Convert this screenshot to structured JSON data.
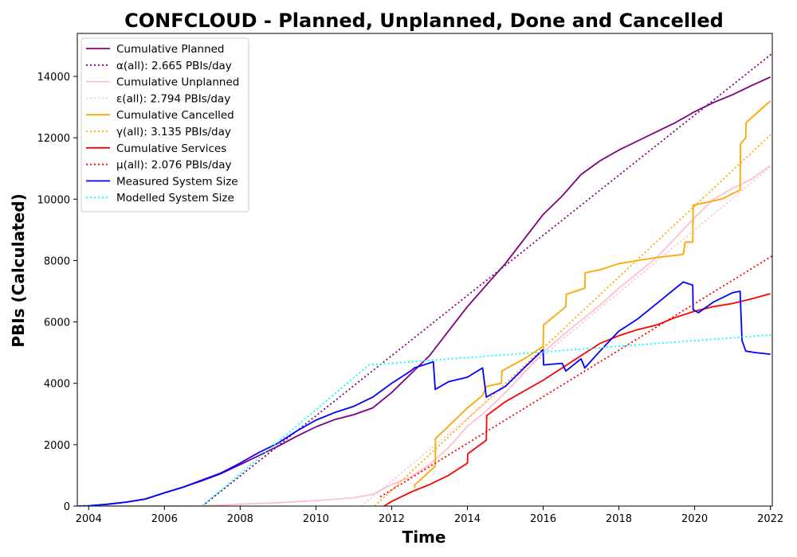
{
  "chart_data": {
    "type": "line",
    "title": "CONFCLOUD - Planned, Unplanned, Done  and Cancelled",
    "xlabel": "Time",
    "ylabel": "PBIs (Calculated)",
    "xlim": [
      2003.7,
      2022.05
    ],
    "ylim": [
      0,
      15400
    ],
    "x_ticks": [
      2004,
      2006,
      2008,
      2010,
      2012,
      2014,
      2016,
      2018,
      2020,
      2022
    ],
    "y_ticks": [
      0,
      2000,
      4000,
      6000,
      8000,
      10000,
      12000,
      14000
    ],
    "grid": false,
    "legend_position": "top-left",
    "series": [
      {
        "name": "Cumulative Planned",
        "color": "#800080",
        "style": "solid",
        "x": [
          2003.7,
          2004,
          2004.5,
          2005,
          2005.5,
          2006,
          2006.5,
          2007,
          2007.5,
          2008,
          2008.5,
          2009,
          2009.5,
          2010,
          2010.5,
          2011,
          2011.5,
          2012,
          2012.5,
          2013,
          2013.5,
          2014,
          2014.5,
          2015,
          2015.5,
          2016,
          2016.5,
          2017,
          2017.5,
          2018,
          2018.5,
          2019,
          2019.5,
          2020,
          2020.5,
          2021,
          2021.5,
          2022
        ],
        "y": [
          0,
          10,
          60,
          130,
          230,
          430,
          620,
          830,
          1060,
          1350,
          1650,
          1950,
          2280,
          2580,
          2820,
          2980,
          3200,
          3700,
          4300,
          4900,
          5700,
          6500,
          7200,
          7900,
          8700,
          9500,
          10100,
          10800,
          11250,
          11600,
          11900,
          12200,
          12500,
          12850,
          13150,
          13400,
          13700,
          13980
        ]
      },
      {
        "name": "α(all): 2.665 PBIs/day",
        "color": "#800080",
        "style": "dotted",
        "x": [
          2007.0,
          2022.05
        ],
        "y": [
          0,
          14750
        ]
      },
      {
        "name": "Cumulative Unplanned",
        "color": "#ffc0cb",
        "style": "solid",
        "x": [
          2003.7,
          2007,
          2008,
          2009,
          2010,
          2011,
          2011.5,
          2012,
          2012.5,
          2013,
          2013.5,
          2014,
          2014.5,
          2015,
          2015.5,
          2016,
          2016.5,
          2017,
          2017.5,
          2018,
          2018.5,
          2019,
          2019.5,
          2020,
          2020.5,
          2021,
          2021.5,
          2022
        ],
        "y": [
          0,
          10,
          60,
          110,
          180,
          270,
          380,
          700,
          950,
          1350,
          1900,
          2600,
          3100,
          3700,
          4350,
          5000,
          5550,
          6050,
          6550,
          7100,
          7600,
          8100,
          8750,
          9400,
          10000,
          10350,
          10650,
          11100
        ]
      },
      {
        "name": "ε(all): 2.794 PBIs/day",
        "color": "#ffc0cb",
        "style": "dotted",
        "x": [
          2011.2,
          2022.05
        ],
        "y": [
          0,
          11100
        ]
      },
      {
        "name": "Cumulative Cancelled",
        "color": "#ffa500",
        "style": "solid",
        "x": [
          2012.6,
          2012.62,
          2013.15,
          2013.16,
          2013.5,
          2014,
          2014.4,
          2014.5,
          2014.9,
          2014.91,
          2015.5,
          2016,
          2016.01,
          2016.6,
          2016.61,
          2017.1,
          2017.11,
          2017.5,
          2018,
          2018.5,
          2019,
          2019.7,
          2019.75,
          2019.95,
          2019.96,
          2020.7,
          2020.71,
          2021.2,
          2021.21,
          2021.35,
          2021.36,
          2022
        ],
        "y": [
          600,
          700,
          1300,
          2200,
          2600,
          3200,
          3600,
          3900,
          4000,
          4400,
          4800,
          5200,
          5900,
          6500,
          6900,
          7100,
          7600,
          7700,
          7900,
          8000,
          8100,
          8200,
          8600,
          8600,
          9800,
          10000,
          10000,
          10300,
          11800,
          12000,
          12500,
          13200
        ]
      },
      {
        "name": "γ(all): 3.135 PBIs/day",
        "color": "#ffa500",
        "style": "dotted",
        "x": [
          2011.55,
          2022.05
        ],
        "y": [
          0,
          12150
        ]
      },
      {
        "name": "Cumulative Services",
        "color": "#ff0000",
        "style": "solid",
        "x": [
          2011.8,
          2012,
          2012.5,
          2013,
          2013.5,
          2014,
          2014.01,
          2014.5,
          2014.51,
          2015,
          2015.5,
          2016,
          2016.5,
          2017,
          2017.5,
          2018,
          2018.5,
          2019,
          2019.5,
          2020,
          2020.5,
          2021,
          2021.5,
          2022
        ],
        "y": [
          0,
          150,
          450,
          700,
          1000,
          1400,
          1700,
          2150,
          2950,
          3400,
          3750,
          4100,
          4500,
          4900,
          5300,
          5550,
          5750,
          5900,
          6150,
          6350,
          6500,
          6600,
          6750,
          6920
        ]
      },
      {
        "name": "μ(all): 2.076 PBIs/day",
        "color": "#ff0000",
        "style": "dotted",
        "x": [
          2011.7,
          2022.05
        ],
        "y": [
          300,
          8150
        ]
      },
      {
        "name": "Measured System Size",
        "color": "#0000ff",
        "style": "solid",
        "x": [
          2003.7,
          2004,
          2004.5,
          2005,
          2005.5,
          2006,
          2006.5,
          2007,
          2007.5,
          2008,
          2008.5,
          2009,
          2009.5,
          2010,
          2010.5,
          2011,
          2011.5,
          2012,
          2012.5,
          2012.6,
          2013.1,
          2013.15,
          2013.5,
          2014,
          2014.4,
          2014.5,
          2015,
          2015.5,
          2016,
          2016.01,
          2016.5,
          2016.6,
          2017,
          2017.1,
          2017.5,
          2018,
          2018.5,
          2019,
          2019.5,
          2019.7,
          2019.95,
          2019.96,
          2020.1,
          2020.5,
          2021,
          2021.2,
          2021.25,
          2021.35,
          2021.6,
          2022
        ],
        "y": [
          0,
          10,
          60,
          130,
          230,
          430,
          620,
          850,
          1080,
          1400,
          1750,
          2050,
          2450,
          2800,
          3050,
          3250,
          3550,
          4000,
          4400,
          4500,
          4700,
          3800,
          4050,
          4200,
          4500,
          3550,
          3900,
          4500,
          5100,
          4600,
          4650,
          4400,
          4800,
          4500,
          5050,
          5700,
          6100,
          6600,
          7100,
          7300,
          7200,
          6400,
          6300,
          6650,
          6950,
          7000,
          5400,
          5050,
          5000,
          4950
        ]
      },
      {
        "name": "Modelled System Size",
        "color": "#00ffff",
        "style": "dotted",
        "x": [
          2003.7,
          2007,
          2011.4,
          2022.05
        ],
        "y": [
          0,
          0,
          4600,
          5580
        ]
      }
    ]
  }
}
